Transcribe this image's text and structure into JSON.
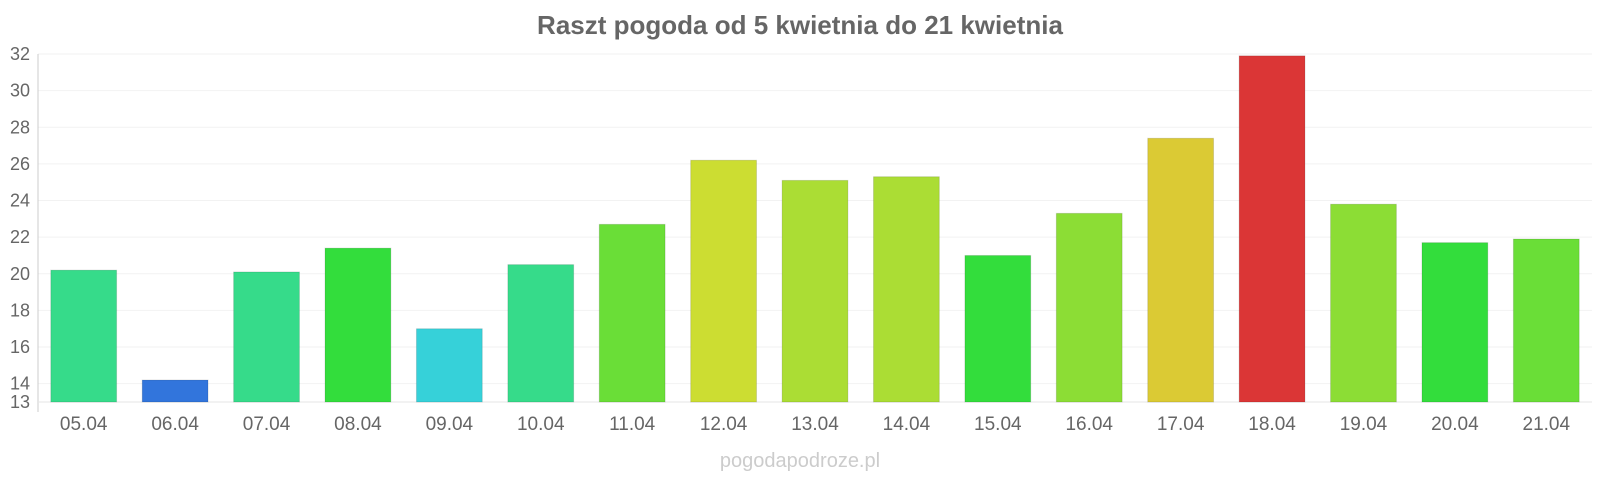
{
  "chart_data": {
    "type": "bar",
    "title": "Raszt pogoda od 5 kwietnia do 21 kwietnia",
    "categories": [
      "05.04",
      "06.04",
      "07.04",
      "08.04",
      "09.04",
      "10.04",
      "11.04",
      "12.04",
      "13.04",
      "14.04",
      "15.04",
      "16.04",
      "17.04",
      "18.04",
      "19.04",
      "20.04",
      "21.04"
    ],
    "values": [
      20.2,
      14.2,
      20.1,
      21.4,
      17.0,
      20.5,
      22.7,
      26.2,
      25.1,
      25.3,
      21.0,
      23.3,
      27.4,
      31.9,
      23.8,
      21.7,
      21.9
    ],
    "colors": [
      "#36db8a",
      "#3275dc",
      "#36db8a",
      "#33dd3c",
      "#36d1d9",
      "#36db8a",
      "#6ade37",
      "#ccdd32",
      "#abdd34",
      "#abdd34",
      "#33dd3c",
      "#8cdd35",
      "#dbca34",
      "#db3636",
      "#8cdd35",
      "#33dd3c",
      "#6ade37"
    ],
    "ylim": [
      13,
      32
    ],
    "yticks": [
      13,
      14,
      16,
      18,
      20,
      22,
      24,
      26,
      28,
      30,
      32
    ],
    "xlabel": "",
    "ylabel": "",
    "grid": true
  },
  "watermark": "pogodapodroze.pl"
}
